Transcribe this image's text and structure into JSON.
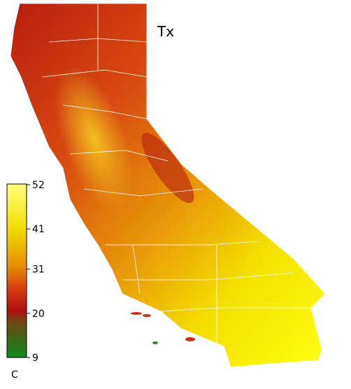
{
  "title": "Tx",
  "colorbar": {
    "range": [
      9,
      52
    ],
    "ticks": [
      52,
      41,
      31,
      20,
      9
    ],
    "unit": "C"
  }
}
